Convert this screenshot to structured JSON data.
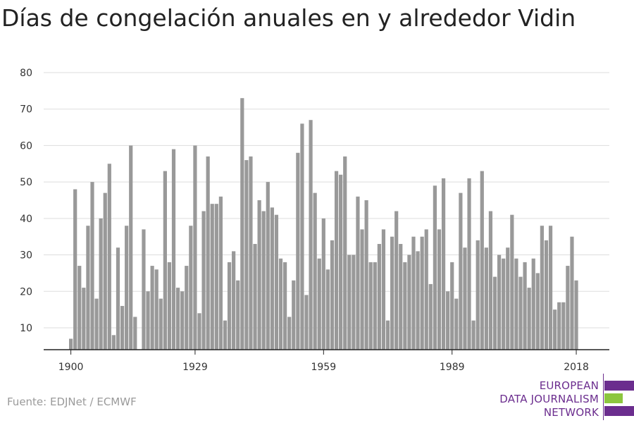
{
  "title": "Días de congelación anuales en y alrededor Vidin",
  "source": "Fuente: EDJNet / ECMWF",
  "logo": {
    "lines": [
      "EUROPEAN",
      "DATA JOURNALISM",
      "NETWORK"
    ],
    "purple": "#6b2d8e",
    "green": "#8cc63f"
  },
  "chart_data": {
    "type": "bar",
    "title": "Días de congelación anuales en y alrededor Vidin",
    "xlabel": "",
    "ylabel": "",
    "x_start": 1900,
    "x_end": 2018,
    "x_ticks": [
      1900,
      1929,
      1959,
      1989,
      2018
    ],
    "y_ticks": [
      10,
      20,
      30,
      40,
      50,
      60,
      70,
      80
    ],
    "ylim": [
      4,
      80
    ],
    "grid": true,
    "bar_color": "#999999",
    "values": [
      7,
      48,
      27,
      21,
      38,
      50,
      18,
      40,
      47,
      55,
      8,
      32,
      16,
      38,
      60,
      13,
      4,
      37,
      20,
      27,
      26,
      18,
      53,
      28,
      59,
      21,
      20,
      27,
      38,
      60,
      14,
      42,
      57,
      44,
      44,
      46,
      12,
      28,
      31,
      23,
      73,
      56,
      57,
      33,
      45,
      42,
      50,
      43,
      41,
      29,
      28,
      13,
      23,
      58,
      66,
      19,
      67,
      47,
      29,
      40,
      26,
      34,
      53,
      52,
      57,
      30,
      30,
      46,
      37,
      45,
      28,
      28,
      33,
      37,
      12,
      35,
      42,
      33,
      28,
      30,
      35,
      31,
      35,
      37,
      22,
      49,
      37,
      51,
      20,
      28,
      18,
      47,
      32,
      51,
      12,
      34,
      53,
      32,
      42,
      24,
      30,
      29,
      32,
      41,
      29,
      24,
      28,
      21,
      29,
      25,
      38,
      34,
      38,
      15,
      17,
      17,
      27,
      35,
      23
    ]
  }
}
